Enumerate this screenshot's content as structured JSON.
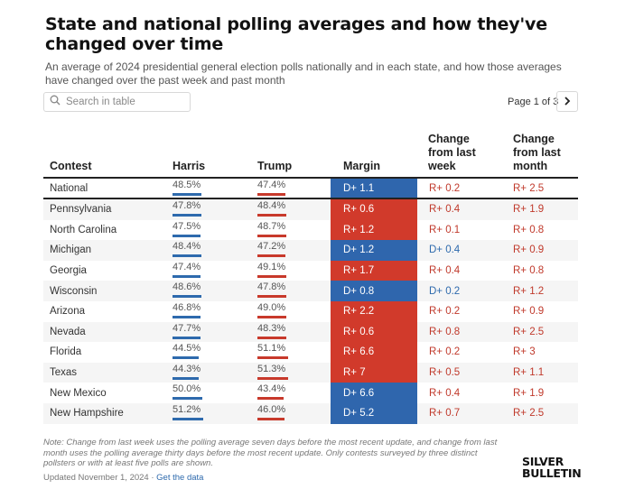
{
  "title": "State and national polling averages and how they've changed over time",
  "subtitle": "An average of 2024 presidential general election polls nationally and in each state, and how those averages have changed over the past week and past month",
  "search": {
    "placeholder": "Search in table"
  },
  "pagination": {
    "text": "Page 1 of 3"
  },
  "columns": {
    "contest": "Contest",
    "harris": "Harris",
    "trump": "Trump",
    "margin": "Margin",
    "week_1": "Change",
    "week_2": "from last",
    "week_3": "week",
    "month_1": "Change",
    "month_2": "from last",
    "month_3": "month"
  },
  "rows": [
    {
      "contest": "National",
      "harris": "48.5%",
      "trump": "47.4%",
      "margin": "D+ 1.1",
      "week": "R+ 0.2",
      "month": "R+ 2.5"
    },
    {
      "contest": "Pennsylvania",
      "harris": "47.8%",
      "trump": "48.4%",
      "margin": "R+ 0.6",
      "week": "R+ 0.4",
      "month": "R+ 1.9"
    },
    {
      "contest": "North Carolina",
      "harris": "47.5%",
      "trump": "48.7%",
      "margin": "R+ 1.2",
      "week": "R+ 0.1",
      "month": "R+ 0.8"
    },
    {
      "contest": "Michigan",
      "harris": "48.4%",
      "trump": "47.2%",
      "margin": "D+ 1.2",
      "week": "D+ 0.4",
      "month": "R+ 0.9"
    },
    {
      "contest": "Georgia",
      "harris": "47.4%",
      "trump": "49.1%",
      "margin": "R+ 1.7",
      "week": "R+ 0.4",
      "month": "R+ 0.8"
    },
    {
      "contest": "Wisconsin",
      "harris": "48.6%",
      "trump": "47.8%",
      "margin": "D+ 0.8",
      "week": "D+ 0.2",
      "month": "R+ 1.2"
    },
    {
      "contest": "Arizona",
      "harris": "46.8%",
      "trump": "49.0%",
      "margin": "R+ 2.2",
      "week": "R+ 0.2",
      "month": "R+ 0.9"
    },
    {
      "contest": "Nevada",
      "harris": "47.7%",
      "trump": "48.3%",
      "margin": "R+ 0.6",
      "week": "R+ 0.8",
      "month": "R+ 2.5"
    },
    {
      "contest": "Florida",
      "harris": "44.5%",
      "trump": "51.1%",
      "margin": "R+ 6.6",
      "week": "R+ 0.2",
      "month": "R+ 3"
    },
    {
      "contest": "Texas",
      "harris": "44.3%",
      "trump": "51.3%",
      "margin": "R+ 7",
      "week": "R+ 0.5",
      "month": "R+ 1.1"
    },
    {
      "contest": "New Mexico",
      "harris": "50.0%",
      "trump": "43.4%",
      "margin": "D+ 6.6",
      "week": "R+ 0.4",
      "month": "R+ 1.9"
    },
    {
      "contest": "New Hampshire",
      "harris": "51.2%",
      "trump": "46.0%",
      "margin": "D+ 5.2",
      "week": "R+ 0.7",
      "month": "R+ 2.5"
    }
  ],
  "colors": {
    "democrat": "#2f66ad",
    "republican": "#d13a2b"
  },
  "footer": {
    "note": "Note: Change from last week uses the polling average seven days before the most recent update, and change from last month uses the polling average thirty days before the most recent update. Only contests surveyed by three distinct pollsters or with at least five polls are shown.",
    "updated": "Updated November 1, 2024 · ",
    "link": "Get the data",
    "logo_line1": "SILVER",
    "logo_line2": "BULLETIN"
  }
}
